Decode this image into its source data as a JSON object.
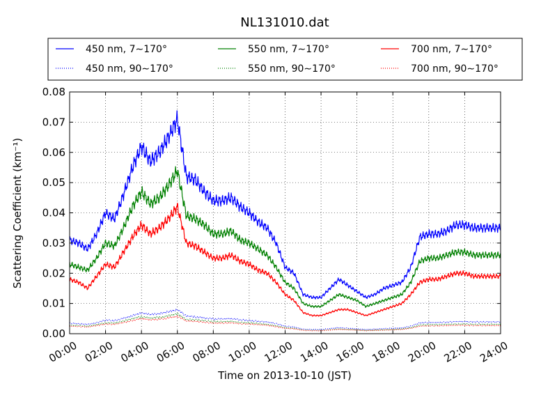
{
  "chart_data": {
    "type": "line",
    "title": "NL131010.dat",
    "xlabel": "Time on 2013-10-10 (JST)",
    "ylabel": "Scattering Coefficient (km⁻¹)",
    "xlim_hours": [
      0,
      24
    ],
    "ylim": [
      0,
      0.08
    ],
    "grid": true,
    "legend_location": "top",
    "x_tick_labels": [
      "00:00",
      "02:00",
      "04:00",
      "06:00",
      "08:00",
      "10:00",
      "12:00",
      "14:00",
      "16:00",
      "18:00",
      "20:00",
      "22:00",
      "24:00"
    ],
    "y_tick_labels": [
      "0.00",
      "0.01",
      "0.02",
      "0.03",
      "0.04",
      "0.05",
      "0.06",
      "0.07",
      "0.08"
    ],
    "x_hours": [
      0,
      0.5,
      1,
      1.5,
      2,
      2.5,
      3,
      3.5,
      4,
      4.5,
      5,
      5.5,
      6,
      6.5,
      7,
      7.5,
      8,
      8.5,
      9,
      9.5,
      10,
      10.5,
      11,
      11.5,
      12,
      12.5,
      13,
      13.5,
      14,
      14.5,
      15,
      15.5,
      16,
      16.5,
      17,
      17.5,
      18,
      18.5,
      19,
      19.5,
      20,
      20.5,
      21,
      21.5,
      22,
      22.5,
      23,
      23.5,
      24
    ],
    "series": [
      {
        "name": "450 nm, 7∼170°",
        "color": "#0000ff",
        "style": "solid",
        "values": [
          0.031,
          0.03,
          0.028,
          0.033,
          0.04,
          0.038,
          0.046,
          0.055,
          0.062,
          0.057,
          0.06,
          0.065,
          0.071,
          0.052,
          0.051,
          0.047,
          0.044,
          0.044,
          0.045,
          0.042,
          0.04,
          0.037,
          0.035,
          0.03,
          0.022,
          0.02,
          0.013,
          0.012,
          0.012,
          0.015,
          0.018,
          0.016,
          0.014,
          0.012,
          0.013,
          0.015,
          0.016,
          0.017,
          0.022,
          0.032,
          0.033,
          0.033,
          0.034,
          0.036,
          0.036,
          0.035,
          0.035,
          0.035,
          0.035
        ]
      },
      {
        "name": "450 nm, 90∼170°",
        "color": "#0000ff",
        "style": "dotted",
        "values": [
          0.0035,
          0.0033,
          0.0031,
          0.0036,
          0.0045,
          0.0043,
          0.0051,
          0.006,
          0.0068,
          0.0063,
          0.0066,
          0.0072,
          0.008,
          0.0058,
          0.0056,
          0.0052,
          0.0049,
          0.0049,
          0.005,
          0.0046,
          0.0044,
          0.0041,
          0.0039,
          0.0033,
          0.0025,
          0.0022,
          0.0015,
          0.0014,
          0.0014,
          0.0017,
          0.002,
          0.0018,
          0.0016,
          0.0014,
          0.0015,
          0.0017,
          0.0018,
          0.0019,
          0.0025,
          0.0036,
          0.0037,
          0.0037,
          0.0038,
          0.004,
          0.004,
          0.0039,
          0.0039,
          0.0039,
          0.0039
        ]
      },
      {
        "name": "550 nm, 7∼170°",
        "color": "#008000",
        "style": "solid",
        "values": [
          0.023,
          0.022,
          0.021,
          0.025,
          0.03,
          0.029,
          0.035,
          0.042,
          0.047,
          0.043,
          0.045,
          0.049,
          0.054,
          0.039,
          0.038,
          0.036,
          0.033,
          0.033,
          0.034,
          0.031,
          0.03,
          0.028,
          0.026,
          0.022,
          0.017,
          0.015,
          0.01,
          0.009,
          0.009,
          0.011,
          0.013,
          0.012,
          0.011,
          0.009,
          0.01,
          0.011,
          0.012,
          0.013,
          0.017,
          0.024,
          0.025,
          0.025,
          0.026,
          0.027,
          0.027,
          0.026,
          0.026,
          0.026,
          0.026
        ]
      },
      {
        "name": "550 nm, 90∼170°",
        "color": "#008000",
        "style": "dotted",
        "values": [
          0.0028,
          0.0027,
          0.0025,
          0.003,
          0.0036,
          0.0035,
          0.0042,
          0.005,
          0.0056,
          0.0052,
          0.0054,
          0.0059,
          0.0065,
          0.0047,
          0.0046,
          0.0043,
          0.004,
          0.004,
          0.0041,
          0.0037,
          0.0036,
          0.0034,
          0.0031,
          0.0026,
          0.002,
          0.0018,
          0.0012,
          0.0011,
          0.0011,
          0.0013,
          0.0016,
          0.0014,
          0.0013,
          0.0011,
          0.0012,
          0.0013,
          0.0014,
          0.0016,
          0.002,
          0.0029,
          0.003,
          0.003,
          0.0031,
          0.0032,
          0.0032,
          0.0031,
          0.0031,
          0.0031,
          0.0031
        ]
      },
      {
        "name": "700 nm, 7∼170°",
        "color": "#ff0000",
        "style": "solid",
        "values": [
          0.018,
          0.017,
          0.015,
          0.019,
          0.023,
          0.022,
          0.027,
          0.032,
          0.036,
          0.033,
          0.035,
          0.038,
          0.042,
          0.03,
          0.029,
          0.027,
          0.025,
          0.025,
          0.026,
          0.024,
          0.023,
          0.021,
          0.02,
          0.017,
          0.013,
          0.011,
          0.007,
          0.006,
          0.006,
          0.007,
          0.008,
          0.008,
          0.007,
          0.006,
          0.007,
          0.008,
          0.009,
          0.01,
          0.013,
          0.017,
          0.018,
          0.018,
          0.019,
          0.02,
          0.02,
          0.019,
          0.019,
          0.019,
          0.019
        ]
      },
      {
        "name": "700 nm, 90∼170°",
        "color": "#ff0000",
        "style": "dotted",
        "values": [
          0.0025,
          0.0024,
          0.0022,
          0.0027,
          0.0032,
          0.0031,
          0.0037,
          0.0044,
          0.005,
          0.0046,
          0.0048,
          0.0052,
          0.0058,
          0.0042,
          0.0041,
          0.0038,
          0.0035,
          0.0035,
          0.0036,
          0.0033,
          0.0032,
          0.003,
          0.0028,
          0.0023,
          0.0018,
          0.0016,
          0.0011,
          0.001,
          0.001,
          0.0012,
          0.0014,
          0.0013,
          0.0012,
          0.001,
          0.0011,
          0.0012,
          0.0013,
          0.0014,
          0.0018,
          0.0025,
          0.0026,
          0.0026,
          0.0027,
          0.0028,
          0.0028,
          0.0027,
          0.0027,
          0.0027,
          0.0027
        ]
      }
    ]
  }
}
